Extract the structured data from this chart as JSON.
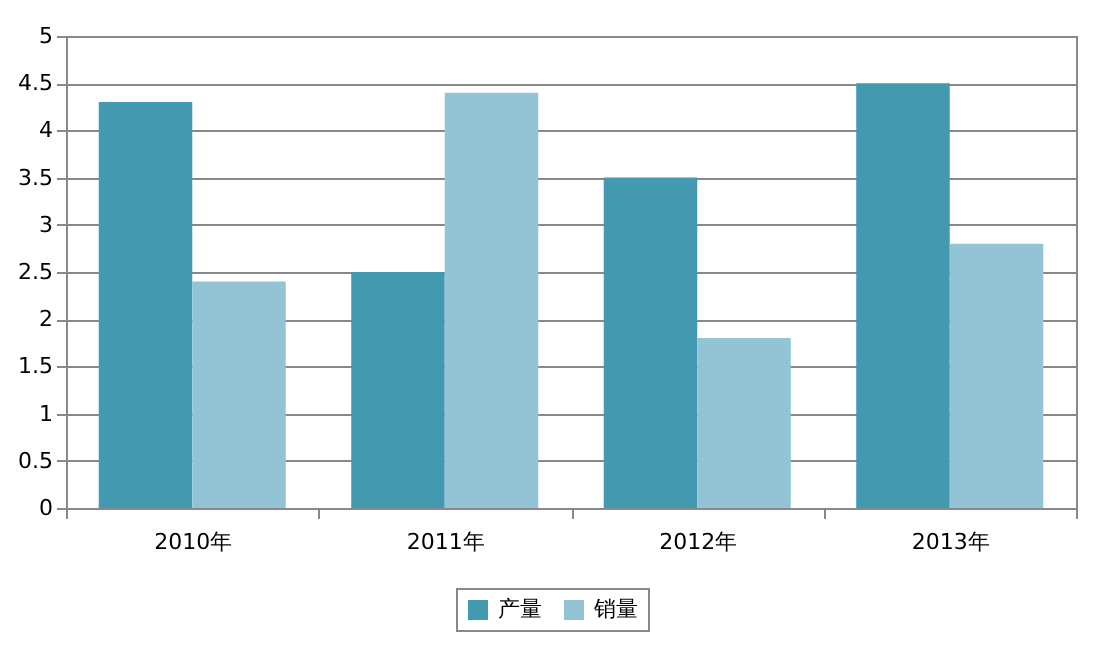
{
  "chart_data": {
    "type": "bar",
    "categories": [
      "2010年",
      "2011年",
      "2012年",
      "2013年"
    ],
    "series": [
      {
        "name": "产量",
        "color": "#4299b0",
        "values": [
          4.3,
          2.5,
          3.5,
          4.5
        ]
      },
      {
        "name": "销量",
        "color": "#93c4d6",
        "values": [
          2.4,
          4.4,
          1.8,
          2.8
        ]
      }
    ],
    "ylim": [
      0,
      5
    ],
    "yticks": [
      0,
      0.5,
      1,
      1.5,
      2,
      2.5,
      3,
      3.5,
      4,
      4.5,
      5
    ],
    "grid": "y",
    "legend": "bottom"
  }
}
